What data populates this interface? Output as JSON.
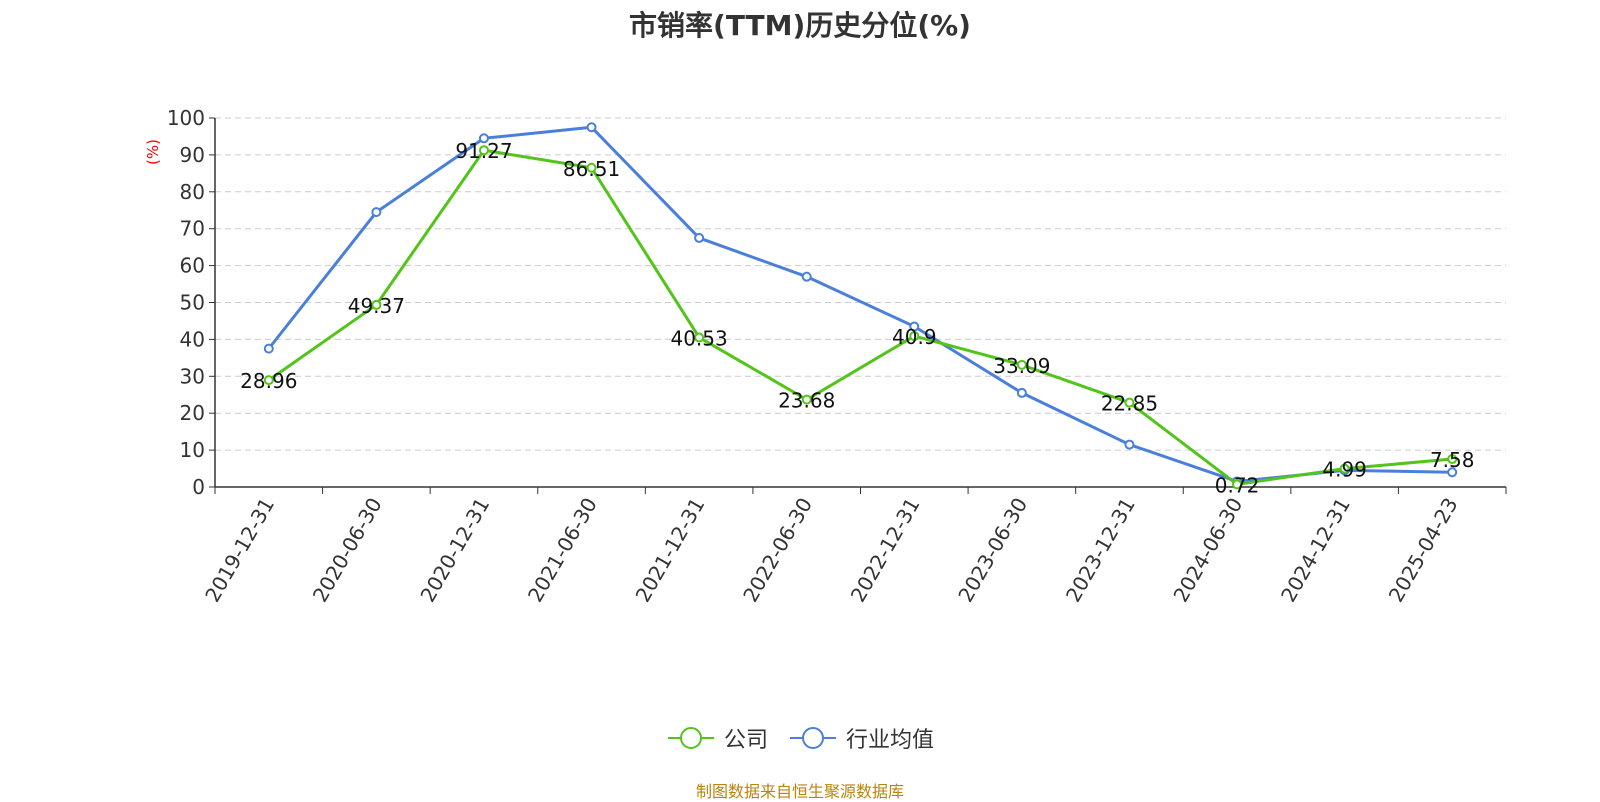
{
  "chart_data": {
    "type": "line",
    "title": "市销率(TTM)历史分位(%)",
    "ylabel": "(%)",
    "ylim": [
      0,
      100
    ],
    "yticks": [
      "0",
      "10",
      "20",
      "30",
      "40",
      "50",
      "60",
      "70",
      "80",
      "90",
      "100"
    ],
    "categories": [
      "2019-12-31",
      "2020-06-30",
      "2020-12-31",
      "2021-06-30",
      "2021-12-31",
      "2022-06-30",
      "2022-12-31",
      "2023-06-30",
      "2023-12-31",
      "2024-06-30",
      "2024-12-31",
      "2025-04-23"
    ],
    "series": [
      {
        "name": "公司",
        "color": "#52c41a",
        "labeled": true,
        "values": [
          28.96,
          49.37,
          91.27,
          86.51,
          40.53,
          23.68,
          40.9,
          33.09,
          22.85,
          0.72,
          4.99,
          7.58
        ],
        "labels": [
          "28.96",
          "49.37",
          "91.27",
          "86.51",
          "40.53",
          "23.68",
          "40.9",
          "33.09",
          "22.85",
          "0.72",
          "4.99",
          "7.58"
        ]
      },
      {
        "name": "行业均值",
        "color": "#4a7fdb",
        "labeled": false,
        "values": [
          37.5,
          74.5,
          94.5,
          97.5,
          67.5,
          57.0,
          43.5,
          25.5,
          11.5,
          1.5,
          4.5,
          4.0
        ]
      }
    ],
    "grid": true,
    "legend_position": "bottom-center",
    "source": "制图数据来自恒生聚源数据库"
  }
}
